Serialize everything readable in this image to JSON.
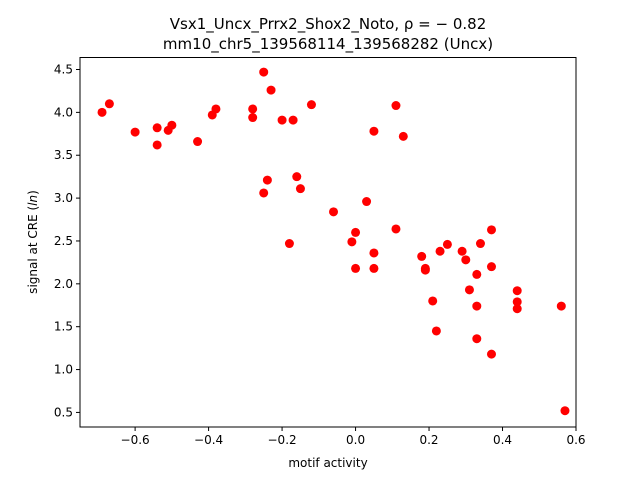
{
  "chart_data": {
    "type": "scatter",
    "title_line1": "Vsx1_Uncx_Prrx2_Shox2_Noto, ρ = − 0.82",
    "title_line2": "mm10_chr5_139568114_139568282 (Uncx)",
    "xlabel": "motif activity",
    "ylabel": "signal at CRE (ln)",
    "ylabel_parts": [
      "signal at CRE (",
      "ln",
      ")"
    ],
    "xlim": [
      -0.75,
      0.6
    ],
    "ylim": [
      0.33,
      4.64
    ],
    "xticks": [
      -0.6,
      -0.4,
      -0.2,
      0.0,
      0.2,
      0.4,
      0.6
    ],
    "xtick_labels": [
      "−0.6",
      "−0.4",
      "−0.2",
      "0.0",
      "0.2",
      "0.4",
      "0.6"
    ],
    "yticks": [
      0.5,
      1.0,
      1.5,
      2.0,
      2.5,
      3.0,
      3.5,
      4.0,
      4.5
    ],
    "ytick_labels": [
      "0.5",
      "1.0",
      "1.5",
      "2.0",
      "2.5",
      "3.0",
      "3.5",
      "4.0",
      "4.5"
    ],
    "grid": false,
    "marker_color": "#ff0000",
    "points": [
      {
        "x": -0.69,
        "y": 4.0
      },
      {
        "x": -0.67,
        "y": 4.1
      },
      {
        "x": -0.6,
        "y": 3.77
      },
      {
        "x": -0.54,
        "y": 3.82
      },
      {
        "x": -0.54,
        "y": 3.62
      },
      {
        "x": -0.51,
        "y": 3.79
      },
      {
        "x": -0.5,
        "y": 3.85
      },
      {
        "x": -0.43,
        "y": 3.66
      },
      {
        "x": -0.39,
        "y": 3.97
      },
      {
        "x": -0.38,
        "y": 4.04
      },
      {
        "x": -0.28,
        "y": 4.04
      },
      {
        "x": -0.28,
        "y": 3.94
      },
      {
        "x": -0.25,
        "y": 4.47
      },
      {
        "x": -0.23,
        "y": 4.26
      },
      {
        "x": -0.2,
        "y": 3.91
      },
      {
        "x": -0.17,
        "y": 3.91
      },
      {
        "x": -0.12,
        "y": 4.09
      },
      {
        "x": -0.24,
        "y": 3.21
      },
      {
        "x": -0.25,
        "y": 3.06
      },
      {
        "x": -0.16,
        "y": 3.25
      },
      {
        "x": -0.15,
        "y": 3.11
      },
      {
        "x": -0.18,
        "y": 2.47
      },
      {
        "x": -0.06,
        "y": 2.84
      },
      {
        "x": 0.03,
        "y": 2.96
      },
      {
        "x": 0.05,
        "y": 3.78
      },
      {
        "x": 0.11,
        "y": 4.08
      },
      {
        "x": 0.13,
        "y": 3.72
      },
      {
        "x": -0.01,
        "y": 2.49
      },
      {
        "x": 0.0,
        "y": 2.6
      },
      {
        "x": 0.0,
        "y": 2.18
      },
      {
        "x": 0.05,
        "y": 2.36
      },
      {
        "x": 0.05,
        "y": 2.18
      },
      {
        "x": 0.11,
        "y": 2.64
      },
      {
        "x": 0.18,
        "y": 2.32
      },
      {
        "x": 0.19,
        "y": 2.16
      },
      {
        "x": 0.19,
        "y": 2.18
      },
      {
        "x": 0.23,
        "y": 2.38
      },
      {
        "x": 0.25,
        "y": 2.46
      },
      {
        "x": 0.29,
        "y": 2.38
      },
      {
        "x": 0.3,
        "y": 2.28
      },
      {
        "x": 0.34,
        "y": 2.47
      },
      {
        "x": 0.37,
        "y": 2.63
      },
      {
        "x": 0.37,
        "y": 2.2
      },
      {
        "x": 0.33,
        "y": 2.11
      },
      {
        "x": 0.31,
        "y": 1.93
      },
      {
        "x": 0.21,
        "y": 1.8
      },
      {
        "x": 0.33,
        "y": 1.74
      },
      {
        "x": 0.22,
        "y": 1.45
      },
      {
        "x": 0.33,
        "y": 1.36
      },
      {
        "x": 0.37,
        "y": 1.18
      },
      {
        "x": 0.44,
        "y": 1.92
      },
      {
        "x": 0.44,
        "y": 1.79
      },
      {
        "x": 0.44,
        "y": 1.71
      },
      {
        "x": 0.56,
        "y": 1.74
      },
      {
        "x": 0.57,
        "y": 0.52
      }
    ]
  }
}
